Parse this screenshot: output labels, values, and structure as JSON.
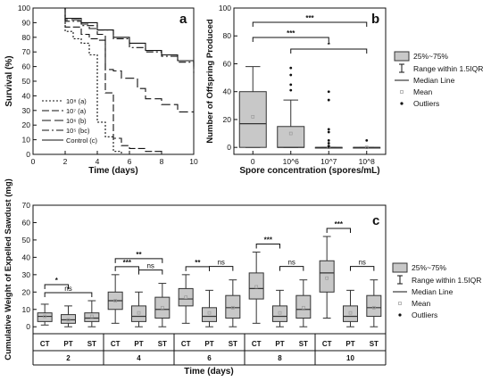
{
  "chart_data": [
    {
      "panel": "a",
      "type": "line",
      "ylabel": "Survival (%)",
      "xlabel": "Time (days)",
      "xlim": [
        0,
        10
      ],
      "ylim": [
        0,
        100
      ],
      "xticks": [
        "0",
        "2",
        "4",
        "6",
        "8",
        "10"
      ],
      "yticks": [
        "0",
        "10",
        "20",
        "30",
        "40",
        "50",
        "60",
        "70",
        "80",
        "90",
        "100"
      ],
      "legend_position": "bottom-left",
      "series": [
        {
          "name": "10⁸ (a)",
          "dash": "2,2",
          "points": [
            [
              0,
              100
            ],
            [
              2,
              100
            ],
            [
              2,
              84
            ],
            [
              2.5,
              84
            ],
            [
              2.5,
              79
            ],
            [
              3,
              79
            ],
            [
              3,
              76
            ],
            [
              3.5,
              76
            ],
            [
              3.5,
              68
            ],
            [
              4,
              68
            ],
            [
              4,
              22
            ],
            [
              4.5,
              22
            ],
            [
              4.5,
              12
            ],
            [
              5,
              12
            ],
            [
              5,
              2
            ],
            [
              5.5,
              2
            ],
            [
              5.5,
              0
            ],
            [
              10,
              0
            ]
          ]
        },
        {
          "name": "10⁷ (a)",
          "dash": "8,3",
          "points": [
            [
              0,
              100
            ],
            [
              2,
              100
            ],
            [
              2,
              87
            ],
            [
              3,
              87
            ],
            [
              3,
              82
            ],
            [
              3.5,
              82
            ],
            [
              3.5,
              79
            ],
            [
              4,
              79
            ],
            [
              4,
              78
            ],
            [
              4.5,
              78
            ],
            [
              4.5,
              42
            ],
            [
              5,
              42
            ],
            [
              5,
              11
            ],
            [
              5.5,
              11
            ],
            [
              5.5,
              6
            ],
            [
              6,
              6
            ],
            [
              6,
              4
            ],
            [
              7,
              4
            ],
            [
              7,
              2
            ],
            [
              8,
              2
            ],
            [
              8,
              0
            ],
            [
              10,
              0
            ]
          ]
        },
        {
          "name": "10⁶ (b)",
          "dash": "10,4",
          "points": [
            [
              0,
              100
            ],
            [
              2,
              100
            ],
            [
              2,
              92
            ],
            [
              3,
              92
            ],
            [
              3,
              89
            ],
            [
              3.5,
              89
            ],
            [
              3.5,
              86
            ],
            [
              4,
              86
            ],
            [
              4,
              82
            ],
            [
              4.5,
              82
            ],
            [
              4.5,
              58
            ],
            [
              5,
              58
            ],
            [
              5,
              57
            ],
            [
              5.5,
              57
            ],
            [
              5.5,
              52
            ],
            [
              6.5,
              52
            ],
            [
              6.5,
              45
            ],
            [
              7,
              45
            ],
            [
              7,
              38
            ],
            [
              8,
              38
            ],
            [
              8,
              34
            ],
            [
              9,
              34
            ],
            [
              9,
              29
            ],
            [
              10,
              29
            ]
          ]
        },
        {
          "name": "10⁵ (bc)",
          "dash": "8,3,2,3",
          "points": [
            [
              0,
              100
            ],
            [
              2,
              100
            ],
            [
              2,
              91
            ],
            [
              3,
              91
            ],
            [
              3,
              88
            ],
            [
              4,
              88
            ],
            [
              4,
              85
            ],
            [
              5,
              85
            ],
            [
              5,
              79
            ],
            [
              6,
              79
            ],
            [
              6,
              73
            ],
            [
              7,
              73
            ],
            [
              7,
              70
            ],
            [
              8,
              70
            ],
            [
              8,
              67
            ],
            [
              9,
              67
            ],
            [
              9,
              63
            ],
            [
              10,
              63
            ],
            [
              10,
              54
            ]
          ]
        },
        {
          "name": "Control (c)",
          "dash": "none",
          "points": [
            [
              0,
              100
            ],
            [
              2,
              100
            ],
            [
              2,
              93
            ],
            [
              3,
              93
            ],
            [
              3,
              90
            ],
            [
              4,
              90
            ],
            [
              4,
              85
            ],
            [
              5,
              85
            ],
            [
              5,
              80
            ],
            [
              6,
              80
            ],
            [
              6,
              76
            ],
            [
              7,
              76
            ],
            [
              7,
              71
            ],
            [
              8,
              71
            ],
            [
              8,
              68
            ],
            [
              9,
              68
            ],
            [
              9,
              64
            ],
            [
              10,
              64
            ],
            [
              10,
              60
            ]
          ]
        }
      ]
    },
    {
      "panel": "b",
      "type": "box",
      "ylabel": "Number of Offspring Produced",
      "xlabel": "Spore concentration (spores/mL)",
      "ylim": [
        -5,
        100
      ],
      "yticks": [
        "0",
        "20",
        "40",
        "60",
        "80",
        "100"
      ],
      "categories": [
        "0",
        "10^6",
        "10^7",
        "10^8"
      ],
      "boxes": [
        {
          "category": "0",
          "min": 0,
          "q1": 0,
          "median": 17,
          "q3": 40,
          "max": 58,
          "mean": 22,
          "outliers": []
        },
        {
          "category": "10^6",
          "min": 0,
          "q1": 0,
          "median": 0,
          "q3": 15,
          "max": 34,
          "mean": 10,
          "outliers": [
            41,
            45,
            52,
            57
          ]
        },
        {
          "category": "10^7",
          "min": 0,
          "q1": 0,
          "median": 0,
          "q3": 0,
          "max": 0,
          "mean": 0,
          "outliers": [
            1,
            3,
            5,
            11,
            13,
            34,
            40
          ]
        },
        {
          "category": "10^8",
          "min": 0,
          "q1": 0,
          "median": 0,
          "q3": 0,
          "max": 0,
          "mean": 0,
          "outliers": [
            5
          ]
        }
      ],
      "significance": [
        {
          "from": "0",
          "to": "10^8",
          "label": "***"
        },
        {
          "from": "0",
          "to": "10^7",
          "label": "***"
        },
        {
          "from": "10^6",
          "to": "10^8",
          "label": "*"
        }
      ]
    },
    {
      "panel": "c",
      "type": "box",
      "ylabel": "Cumulative Weight of Expelled Sawdust (mg)",
      "xlabel": "Time (days)",
      "ylim": [
        -4,
        70
      ],
      "yticks": [
        "0",
        "10",
        "20",
        "30",
        "40",
        "50",
        "60",
        "70"
      ],
      "treatments": [
        "CT",
        "PT",
        "ST"
      ],
      "groups": [
        {
          "day": "2",
          "boxes": [
            {
              "treatment": "CT",
              "min": 1,
              "q1": 3,
              "median": 6,
              "q3": 8,
              "max": 13,
              "mean": 6
            },
            {
              "treatment": "PT",
              "min": 0,
              "q1": 2,
              "median": 4,
              "q3": 7,
              "max": 12,
              "mean": 4
            },
            {
              "treatment": "ST",
              "min": 0,
              "q1": 3,
              "median": 5,
              "q3": 8,
              "max": 15,
              "mean": 6
            }
          ],
          "significance": [
            {
              "from": "CT",
              "to": "PT",
              "label": "*"
            },
            {
              "from": "CT",
              "to": "ST",
              "label": "ns"
            }
          ]
        },
        {
          "day": "4",
          "boxes": [
            {
              "treatment": "CT",
              "min": 2,
              "q1": 10,
              "median": 15,
              "q3": 20,
              "max": 30,
              "mean": 15
            },
            {
              "treatment": "PT",
              "min": 0,
              "q1": 3,
              "median": 6,
              "q3": 12,
              "max": 20,
              "mean": 8
            },
            {
              "treatment": "ST",
              "min": 0,
              "q1": 5,
              "median": 10,
              "q3": 17,
              "max": 25,
              "mean": 11
            }
          ],
          "significance": [
            {
              "from": "CT",
              "to": "ST",
              "label": "**"
            },
            {
              "from": "CT",
              "to": "PT",
              "label": "***"
            },
            {
              "from": "PT",
              "to": "ST",
              "label": "ns"
            }
          ]
        },
        {
          "day": "6",
          "boxes": [
            {
              "treatment": "CT",
              "min": 2,
              "q1": 12,
              "median": 16,
              "q3": 22,
              "max": 30,
              "mean": 17
            },
            {
              "treatment": "PT",
              "min": 0,
              "q1": 3,
              "median": 6,
              "q3": 11,
              "max": 21,
              "mean": 8
            },
            {
              "treatment": "ST",
              "min": 0,
              "q1": 5,
              "median": 11,
              "q3": 18,
              "max": 27,
              "mean": 11
            }
          ],
          "significance": [
            {
              "from": "CT",
              "to": "PT",
              "label": "**"
            },
            {
              "from": "PT",
              "to": "ST",
              "label": "ns"
            }
          ]
        },
        {
          "day": "8",
          "boxes": [
            {
              "treatment": "CT",
              "min": 2,
              "q1": 16,
              "median": 22,
              "q3": 31,
              "max": 43,
              "mean": 23
            },
            {
              "treatment": "PT",
              "min": 0,
              "q1": 3,
              "median": 6,
              "q3": 12,
              "max": 21,
              "mean": 8
            },
            {
              "treatment": "ST",
              "min": 0,
              "q1": 5,
              "median": 10,
              "q3": 18,
              "max": 27,
              "mean": 11
            }
          ],
          "significance": [
            {
              "from": "CT",
              "to": "PT",
              "label": "***"
            },
            {
              "from": "PT",
              "to": "ST",
              "label": "ns"
            }
          ]
        },
        {
          "day": "10",
          "boxes": [
            {
              "treatment": "CT",
              "min": 5,
              "q1": 20,
              "median": 31,
              "q3": 38,
              "max": 52,
              "mean": 28
            },
            {
              "treatment": "PT",
              "min": 0,
              "q1": 3,
              "median": 6,
              "q3": 12,
              "max": 21,
              "mean": 8
            },
            {
              "treatment": "ST",
              "min": 0,
              "q1": 6,
              "median": 11,
              "q3": 18,
              "max": 27,
              "mean": 11
            }
          ],
          "significance": [
            {
              "from": "CT",
              "to": "PT",
              "label": "***"
            },
            {
              "from": "PT",
              "to": "ST",
              "label": "ns"
            }
          ]
        }
      ]
    }
  ],
  "panel_labels": {
    "a": "a",
    "b": "b",
    "c": "c"
  },
  "box_legend": {
    "box": "25%~75%",
    "range": "Range within 1.5IQR",
    "median": "Median Line",
    "mean": "Mean",
    "outliers": "Outliers"
  },
  "colors": {
    "box_fill": "#c8c8c8",
    "box_stroke": "#333333",
    "mean_marker": "#9a9a9a",
    "line": "#111111"
  }
}
